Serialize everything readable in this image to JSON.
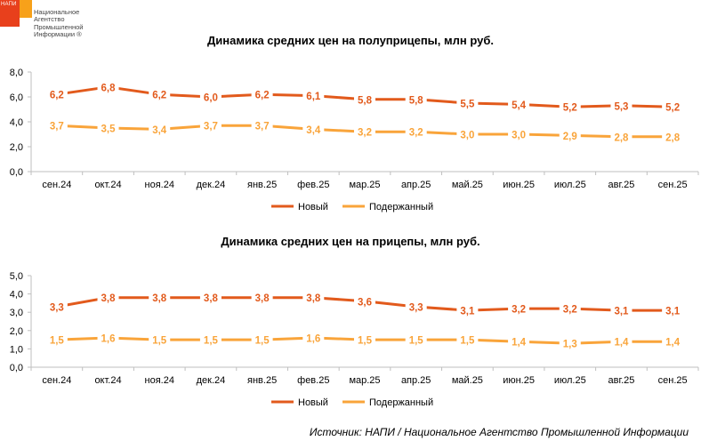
{
  "logo": {
    "abbr": "НАПИ",
    "lines": [
      "Национальное",
      "Агентство",
      "Промышленной",
      "Информации ®"
    ]
  },
  "source": "Источник: НАПИ / Национальное Агентство Промышленной Информации",
  "colors": {
    "new": "#e25a1c",
    "used": "#f9a43a",
    "axis": "#bfbfbf",
    "text": "#000000"
  },
  "chart_data": [
    {
      "type": "line",
      "title": "Динамика средних цен на полуприцепы, млн руб.",
      "categories": [
        "сен.24",
        "окт.24",
        "ноя.24",
        "дек.24",
        "янв.25",
        "фев.25",
        "мар.25",
        "апр.25",
        "май.25",
        "июн.25",
        "июл.25",
        "авг.25",
        "сен.25"
      ],
      "series": [
        {
          "name": "Новый",
          "values": [
            6.2,
            6.8,
            6.2,
            6.0,
            6.2,
            6.1,
            5.8,
            5.8,
            5.5,
            5.4,
            5.2,
            5.3,
            5.2
          ],
          "labels": [
            "6,2",
            "6,8",
            "6,2",
            "6,0",
            "6,2",
            "6,1",
            "5,8",
            "5,8",
            "5,5",
            "5,4",
            "5,2",
            "5,3",
            "5,2"
          ]
        },
        {
          "name": "Подержанный",
          "values": [
            3.7,
            3.5,
            3.4,
            3.7,
            3.7,
            3.4,
            3.2,
            3.2,
            3.0,
            3.0,
            2.9,
            2.8,
            2.8
          ],
          "labels": [
            "3,7",
            "3,5",
            "3,4",
            "3,7",
            "3,7",
            "3,4",
            "3,2",
            "3,2",
            "3,0",
            "3,0",
            "2,9",
            "2,8",
            "2,8"
          ]
        }
      ],
      "yticks": [
        0,
        2,
        4,
        6,
        8
      ],
      "ytick_labels": [
        "0,0",
        "2,0",
        "4,0",
        "6,0",
        "8,0"
      ],
      "ylim": [
        0,
        8
      ],
      "legend": "bottom"
    },
    {
      "type": "line",
      "title": "Динамика средних цен на прицепы, млн руб.",
      "categories": [
        "сен.24",
        "окт.24",
        "ноя.24",
        "дек.24",
        "янв.25",
        "фев.25",
        "мар.25",
        "апр.25",
        "май.25",
        "июн.25",
        "июл.25",
        "авг.25",
        "сен.25"
      ],
      "series": [
        {
          "name": "Новый",
          "values": [
            3.3,
            3.8,
            3.8,
            3.8,
            3.8,
            3.8,
            3.6,
            3.3,
            3.1,
            3.2,
            3.2,
            3.1,
            3.1
          ],
          "labels": [
            "3,3",
            "3,8",
            "3,8",
            "3,8",
            "3,8",
            "3,8",
            "3,6",
            "3,3",
            "3,1",
            "3,2",
            "3,2",
            "3,1",
            "3,1"
          ]
        },
        {
          "name": "Подержанный",
          "values": [
            1.5,
            1.6,
            1.5,
            1.5,
            1.5,
            1.6,
            1.5,
            1.5,
            1.5,
            1.4,
            1.3,
            1.4,
            1.4
          ],
          "labels": [
            "1,5",
            "1,6",
            "1,5",
            "1,5",
            "1,5",
            "1,6",
            "1,5",
            "1,5",
            "1,5",
            "1,4",
            "1,3",
            "1,4",
            "1,4"
          ]
        }
      ],
      "yticks": [
        0,
        1,
        2,
        3,
        4,
        5
      ],
      "ytick_labels": [
        "0,0",
        "1,0",
        "2,0",
        "3,0",
        "4,0",
        "5,0"
      ],
      "ylim": [
        0,
        5
      ],
      "legend": "bottom"
    }
  ]
}
